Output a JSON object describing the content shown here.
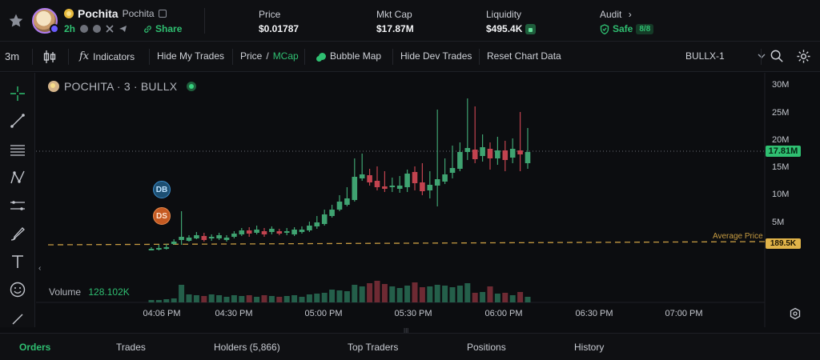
{
  "header": {
    "token_name": "Pochita",
    "token_symbol": "Pochita",
    "age": "2h",
    "share_label": "Share",
    "stats": [
      {
        "label": "Price",
        "value": "$0.01787"
      },
      {
        "label": "Mkt Cap",
        "value": "$17.87M"
      },
      {
        "label": "Liquidity",
        "value": "$495.4K"
      }
    ],
    "audit_label": "Audit",
    "audit_status": "Safe",
    "audit_score": "8/8"
  },
  "toolbar": {
    "interval": "3m",
    "indicators": "Indicators",
    "hide_my_trades": "Hide My Trades",
    "price_label": "Price",
    "slash": "/",
    "mcap_label": "MCap",
    "bubble_map": "Bubble Map",
    "hide_dev_trades": "Hide Dev Trades",
    "reset_chart": "Reset Chart Data",
    "layout_select": "BULLX-1"
  },
  "chart": {
    "legend_title": "POCHITA · 3 · BULLX",
    "volume_label": "Volume",
    "volume_value": "128.102K",
    "current_tag": "17.81M",
    "avg_label": "Average Price",
    "avg_tag": "189.5K",
    "markers": [
      "DB",
      "DS"
    ],
    "y_ticks": [
      "30M",
      "25M",
      "20M",
      "15M",
      "10M",
      "5M"
    ],
    "x_ticks": [
      "04:06 PM",
      "04:30 PM",
      "05:00 PM",
      "05:30 PM",
      "06:00 PM",
      "06:30 PM",
      "07:00 PM"
    ],
    "colors": {
      "up": "#3fa371",
      "down": "#c2434f",
      "volume_up": "#245f4a",
      "volume_down": "#6e2a33",
      "avg_line": "#c79c42"
    }
  },
  "tabs": [
    "Orders",
    "Trades",
    "Holders (5,866)",
    "Top Traders",
    "Positions",
    "History"
  ],
  "icons": [
    "star-icon",
    "copy-icon",
    "share-icon",
    "safe-shield-icon",
    "lock-icon",
    "crosshair-icon",
    "trendline-icon",
    "text-icon",
    "emoji-icon",
    "settings-icon"
  ]
}
